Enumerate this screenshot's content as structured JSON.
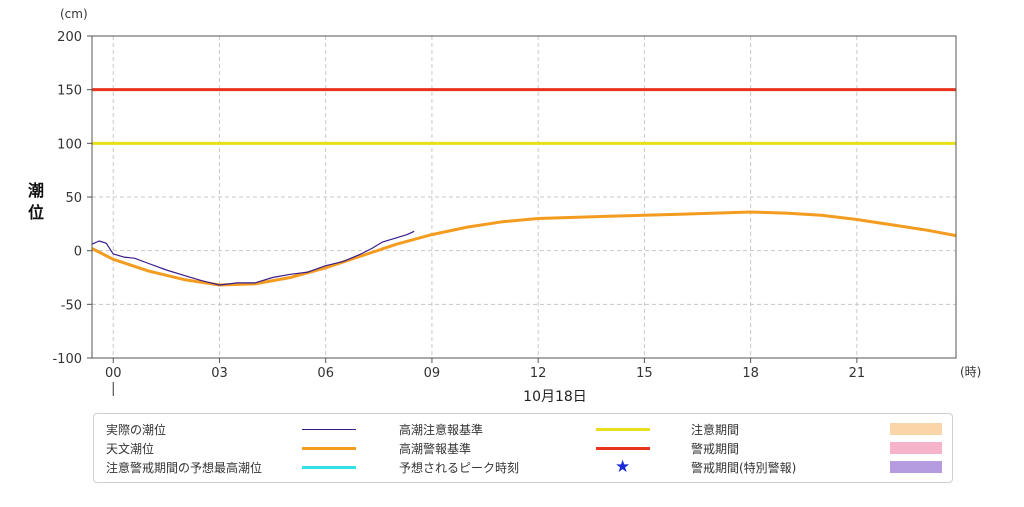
{
  "chart_data": {
    "type": "line",
    "y_unit": "(cm)",
    "ylabel": "潮位",
    "x_unit": "(時)",
    "date_label": "10月18日",
    "ylim": [
      -100,
      200
    ],
    "xlim": [
      -0.6,
      23.8
    ],
    "x_ticks": [
      {
        "value": 0,
        "label": "00"
      },
      {
        "value": 3,
        "label": "03"
      },
      {
        "value": 6,
        "label": "06"
      },
      {
        "value": 9,
        "label": "09"
      },
      {
        "value": 12,
        "label": "12"
      },
      {
        "value": 15,
        "label": "15"
      },
      {
        "value": 18,
        "label": "18"
      },
      {
        "value": 21,
        "label": "21"
      }
    ],
    "y_ticks": [
      {
        "value": 200,
        "label": "200"
      },
      {
        "value": 150,
        "label": "150"
      },
      {
        "value": 100,
        "label": "100"
      },
      {
        "value": 50,
        "label": "50"
      },
      {
        "value": 0,
        "label": "0"
      },
      {
        "value": -50,
        "label": "-50"
      },
      {
        "value": -100,
        "label": "-100"
      }
    ],
    "grid": true,
    "thresholds": [
      {
        "name": "高潮警報基準",
        "value": 150,
        "color": "#e8341c"
      },
      {
        "name": "高潮注意報基準",
        "value": 100,
        "color": "#e8df1a"
      }
    ],
    "series": [
      {
        "name": "天文潮位",
        "color": "#f39c1f",
        "x": [
          -0.6,
          0,
          1,
          2,
          3,
          4,
          5,
          6,
          7,
          8,
          9,
          10,
          11,
          12,
          13,
          14,
          15,
          16,
          17,
          18,
          19,
          20,
          21,
          22,
          23,
          23.8
        ],
        "y": [
          2,
          -8,
          -19,
          -27,
          -32,
          -31,
          -25,
          -16,
          -5,
          6,
          15,
          22,
          27,
          30,
          31,
          32,
          33,
          34,
          35,
          36,
          35,
          33,
          29,
          24,
          19,
          14
        ]
      },
      {
        "name": "実際の潮位",
        "color": "#3a1d8c",
        "x": [
          -0.6,
          -0.4,
          -0.2,
          0,
          0.3,
          0.6,
          1,
          1.5,
          2,
          2.5,
          3,
          3.5,
          4,
          4.5,
          5,
          5.5,
          6,
          6.5,
          7,
          7.3,
          7.6,
          8,
          8.3,
          8.5
        ],
        "y": [
          6,
          9,
          7,
          -3,
          -6,
          -7,
          -12,
          -18,
          -23,
          -28,
          -32,
          -30,
          -30,
          -25,
          -22,
          -20,
          -14,
          -10,
          -3,
          2,
          8,
          12,
          15,
          18
        ]
      }
    ]
  },
  "legend": {
    "col1": [
      {
        "label": "実際の潮位",
        "kind": "line-thin",
        "color": "#3a1d8c"
      },
      {
        "label": "天文潮位",
        "kind": "line-thick",
        "color": "#f39c1f"
      },
      {
        "label": "注意警戒期間の予想最高潮位",
        "kind": "line-thick",
        "color": "#33e0e6"
      }
    ],
    "col2": [
      {
        "label": "高潮注意報基準",
        "kind": "line-thick",
        "color": "#e8df1a"
      },
      {
        "label": "高潮警報基準",
        "kind": "line-thick",
        "color": "#e8341c"
      },
      {
        "label": "予想されるピーク時刻",
        "kind": "star",
        "color": "#1a2ad6",
        "symbol": "★"
      }
    ],
    "col3": [
      {
        "label": "注意期間",
        "kind": "box",
        "color": "#f9d5a7"
      },
      {
        "label": "警戒期間",
        "kind": "box",
        "color": "#f7b3c9"
      },
      {
        "label": "警戒期間(特別警報)",
        "kind": "box",
        "color": "#b59be0"
      }
    ]
  }
}
